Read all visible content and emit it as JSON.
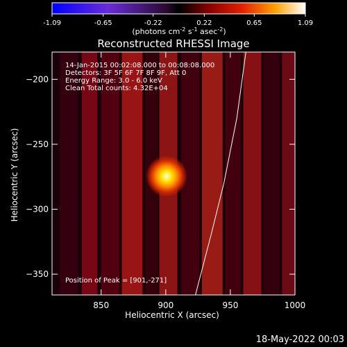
{
  "colorbar": {
    "ticks": [
      "-1.09",
      "-0.65",
      "-0.22",
      "0.22",
      "0.65",
      "1.09"
    ],
    "units_main": "(photons cm",
    "units_sup1": "-2",
    "units_mid": " s",
    "units_sup2": "-1",
    "units_end": " asec",
    "units_sup3": "-2",
    "units_close": ")",
    "range": [
      -1.09,
      1.09
    ]
  },
  "plot": {
    "title": "Reconstructed RHESSI Image",
    "info_lines": [
      "14-Jan-2015 00:02:08.000 to 00:08:08.000",
      "Detectors: 3F 5F 6F 7F 8F 9F, Att 0",
      "Energy Range: 3.0 - 6.0 keV",
      "Clean     Total counts: 4.32E+04"
    ],
    "peak_label": "Position of Peak = [901,-271]",
    "timestamp": "18-May-2022 00:03"
  },
  "chart_data": {
    "type": "heatmap",
    "title": "Reconstructed RHESSI Image",
    "xlabel": "Heliocentric X (arcsec)",
    "ylabel": "Heliocentric Y (arcsec)",
    "xlim": [
      812,
      1000
    ],
    "ylim": [
      -366,
      -179
    ],
    "x_ticks": [
      850,
      900,
      950,
      1000
    ],
    "y_ticks": [
      -200,
      -250,
      -300,
      -350
    ],
    "x_tick_labels": [
      "850",
      "900",
      "950",
      "1000"
    ],
    "y_tick_labels": [
      "−200",
      "−250",
      "−300",
      "−350"
    ],
    "peak": {
      "x": 901,
      "y": -271
    },
    "colormap": "std_gamma_II (black-purple-red-orange-yellow-white)",
    "limb_curve": {
      "x": [
        923,
        935,
        945,
        955,
        962
      ],
      "y": [
        -366,
        -320,
        -280,
        -230,
        -179
      ]
    }
  }
}
